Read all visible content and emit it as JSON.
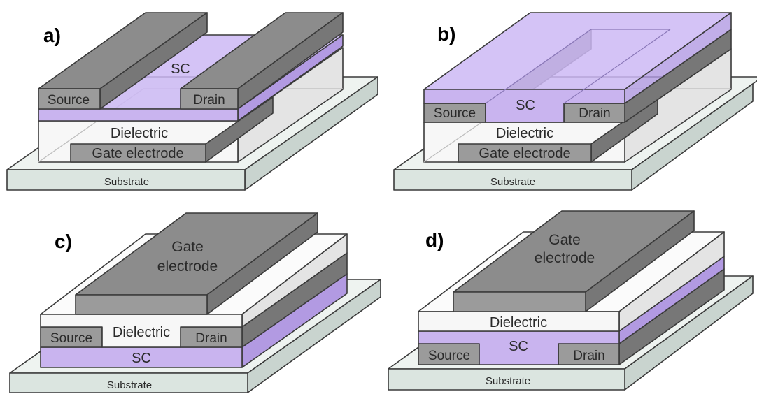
{
  "panels": {
    "a": {
      "letter": "a)",
      "source": "Source",
      "drain": "Drain",
      "sc": "SC",
      "dielectric": "Dielectric",
      "gate": "Gate electrode",
      "substrate": "Substrate"
    },
    "b": {
      "letter": "b)",
      "source": "Source",
      "drain": "Drain",
      "sc": "SC",
      "dielectric": "Dielectric",
      "gate": "Gate electrode",
      "substrate": "Substrate"
    },
    "c": {
      "letter": "c)",
      "gate_line1": "Gate",
      "gate_line2": "electrode",
      "dielectric": "Dielectric",
      "source": "Source",
      "drain": "Drain",
      "sc": "SC",
      "substrate": "Substrate"
    },
    "d": {
      "letter": "d)",
      "gate_line1": "Gate",
      "gate_line2": "electrode",
      "dielectric": "Dielectric",
      "sc": "SC",
      "source": "Source",
      "drain": "Drain",
      "substrate": "Substrate"
    }
  },
  "colors": {
    "semiconductor": "#c9b4ef",
    "electrode": "#9b9b9b",
    "dielectric": "#f7f7f7",
    "substrate": "#dbe5e0"
  }
}
